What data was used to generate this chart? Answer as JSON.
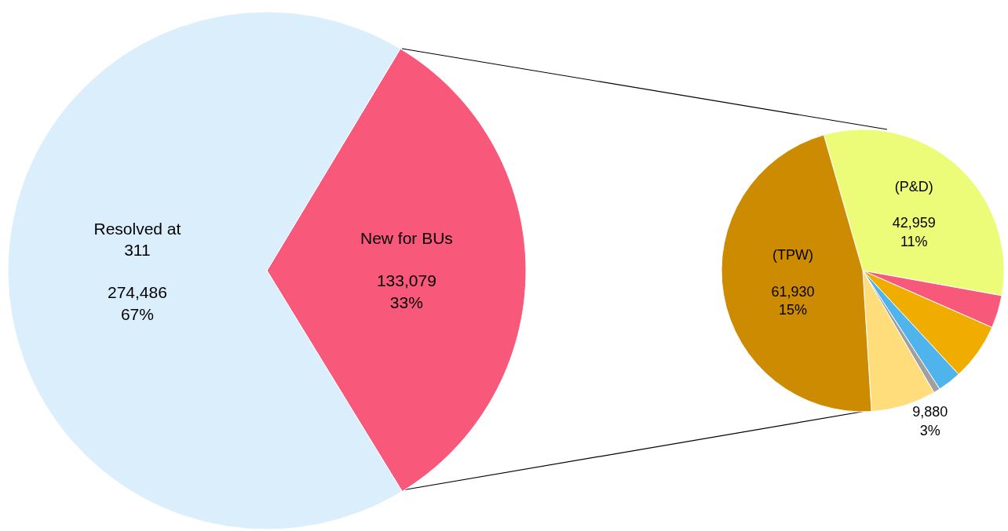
{
  "chart_data": [
    {
      "type": "pie",
      "categories": [
        "New for BUs",
        "Resolved at\n311"
      ],
      "values": [
        133079,
        274486
      ],
      "value_labels": [
        "133,079\n33%",
        "274,486\n67%"
      ],
      "colors": [
        "#f8587a",
        "#dbeefb"
      ]
    },
    {
      "type": "pie",
      "categories": [
        "(P&D)",
        null,
        null,
        null,
        null,
        null,
        "(TPW)"
      ],
      "values": [
        42959,
        5000,
        8700,
        3600,
        1000,
        9880,
        61930
      ],
      "value_labels": [
        "42,959\n11%",
        null,
        null,
        null,
        null,
        "9,880\n3%",
        "61,930\n15%"
      ],
      "colors": [
        "#ecfc78",
        "#f8587a",
        "#f0ad00",
        "#4fb4ec",
        "#a0a0a0",
        "#fedd7a",
        "#cc8b00"
      ]
    }
  ]
}
